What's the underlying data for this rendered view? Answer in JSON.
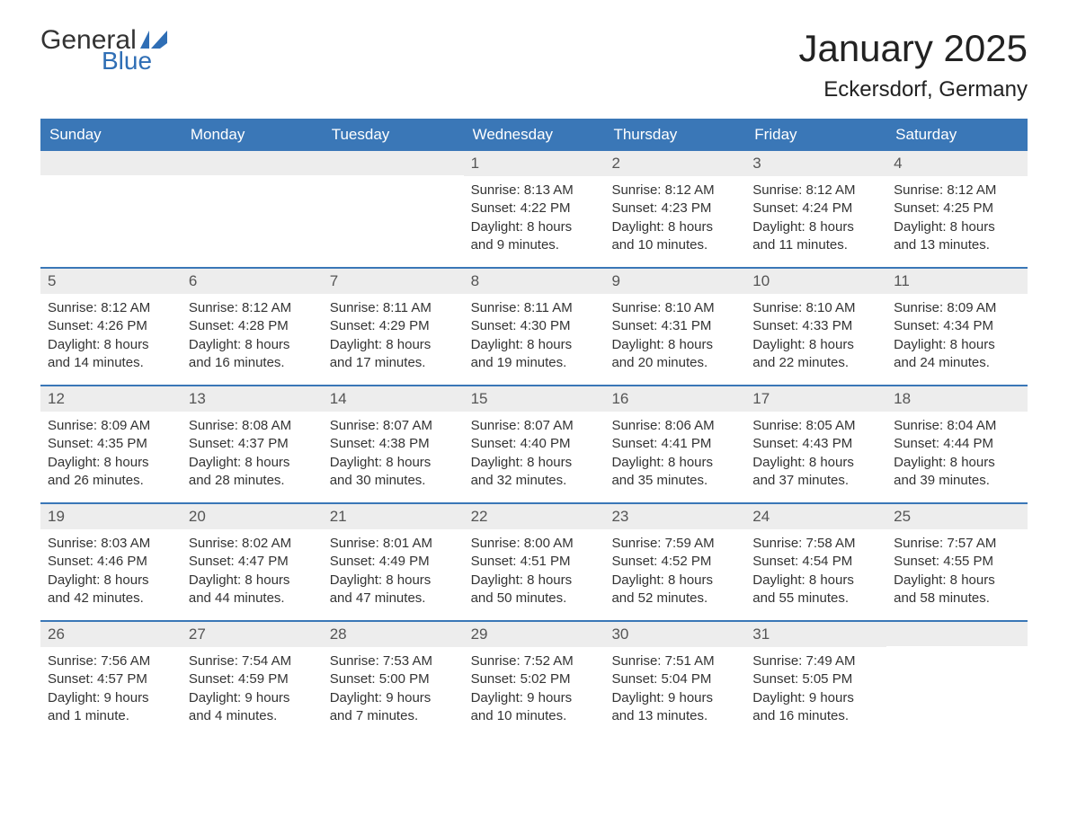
{
  "logo": {
    "text1": "General",
    "text2": "Blue",
    "flag_color": "#2f6eb5"
  },
  "title": "January 2025",
  "location": "Eckersdorf, Germany",
  "colors": {
    "header_bg": "#3a77b7",
    "header_text": "#ffffff",
    "daynum_bg": "#ededed",
    "border": "#3a77b7",
    "text": "#333333"
  },
  "weekdays": [
    "Sunday",
    "Monday",
    "Tuesday",
    "Wednesday",
    "Thursday",
    "Friday",
    "Saturday"
  ],
  "weeks": [
    [
      {
        "n": "",
        "sunrise": "",
        "sunset": "",
        "daylight": ""
      },
      {
        "n": "",
        "sunrise": "",
        "sunset": "",
        "daylight": ""
      },
      {
        "n": "",
        "sunrise": "",
        "sunset": "",
        "daylight": ""
      },
      {
        "n": "1",
        "sunrise": "Sunrise: 8:13 AM",
        "sunset": "Sunset: 4:22 PM",
        "daylight": "Daylight: 8 hours and 9 minutes."
      },
      {
        "n": "2",
        "sunrise": "Sunrise: 8:12 AM",
        "sunset": "Sunset: 4:23 PM",
        "daylight": "Daylight: 8 hours and 10 minutes."
      },
      {
        "n": "3",
        "sunrise": "Sunrise: 8:12 AM",
        "sunset": "Sunset: 4:24 PM",
        "daylight": "Daylight: 8 hours and 11 minutes."
      },
      {
        "n": "4",
        "sunrise": "Sunrise: 8:12 AM",
        "sunset": "Sunset: 4:25 PM",
        "daylight": "Daylight: 8 hours and 13 minutes."
      }
    ],
    [
      {
        "n": "5",
        "sunrise": "Sunrise: 8:12 AM",
        "sunset": "Sunset: 4:26 PM",
        "daylight": "Daylight: 8 hours and 14 minutes."
      },
      {
        "n": "6",
        "sunrise": "Sunrise: 8:12 AM",
        "sunset": "Sunset: 4:28 PM",
        "daylight": "Daylight: 8 hours and 16 minutes."
      },
      {
        "n": "7",
        "sunrise": "Sunrise: 8:11 AM",
        "sunset": "Sunset: 4:29 PM",
        "daylight": "Daylight: 8 hours and 17 minutes."
      },
      {
        "n": "8",
        "sunrise": "Sunrise: 8:11 AM",
        "sunset": "Sunset: 4:30 PM",
        "daylight": "Daylight: 8 hours and 19 minutes."
      },
      {
        "n": "9",
        "sunrise": "Sunrise: 8:10 AM",
        "sunset": "Sunset: 4:31 PM",
        "daylight": "Daylight: 8 hours and 20 minutes."
      },
      {
        "n": "10",
        "sunrise": "Sunrise: 8:10 AM",
        "sunset": "Sunset: 4:33 PM",
        "daylight": "Daylight: 8 hours and 22 minutes."
      },
      {
        "n": "11",
        "sunrise": "Sunrise: 8:09 AM",
        "sunset": "Sunset: 4:34 PM",
        "daylight": "Daylight: 8 hours and 24 minutes."
      }
    ],
    [
      {
        "n": "12",
        "sunrise": "Sunrise: 8:09 AM",
        "sunset": "Sunset: 4:35 PM",
        "daylight": "Daylight: 8 hours and 26 minutes."
      },
      {
        "n": "13",
        "sunrise": "Sunrise: 8:08 AM",
        "sunset": "Sunset: 4:37 PM",
        "daylight": "Daylight: 8 hours and 28 minutes."
      },
      {
        "n": "14",
        "sunrise": "Sunrise: 8:07 AM",
        "sunset": "Sunset: 4:38 PM",
        "daylight": "Daylight: 8 hours and 30 minutes."
      },
      {
        "n": "15",
        "sunrise": "Sunrise: 8:07 AM",
        "sunset": "Sunset: 4:40 PM",
        "daylight": "Daylight: 8 hours and 32 minutes."
      },
      {
        "n": "16",
        "sunrise": "Sunrise: 8:06 AM",
        "sunset": "Sunset: 4:41 PM",
        "daylight": "Daylight: 8 hours and 35 minutes."
      },
      {
        "n": "17",
        "sunrise": "Sunrise: 8:05 AM",
        "sunset": "Sunset: 4:43 PM",
        "daylight": "Daylight: 8 hours and 37 minutes."
      },
      {
        "n": "18",
        "sunrise": "Sunrise: 8:04 AM",
        "sunset": "Sunset: 4:44 PM",
        "daylight": "Daylight: 8 hours and 39 minutes."
      }
    ],
    [
      {
        "n": "19",
        "sunrise": "Sunrise: 8:03 AM",
        "sunset": "Sunset: 4:46 PM",
        "daylight": "Daylight: 8 hours and 42 minutes."
      },
      {
        "n": "20",
        "sunrise": "Sunrise: 8:02 AM",
        "sunset": "Sunset: 4:47 PM",
        "daylight": "Daylight: 8 hours and 44 minutes."
      },
      {
        "n": "21",
        "sunrise": "Sunrise: 8:01 AM",
        "sunset": "Sunset: 4:49 PM",
        "daylight": "Daylight: 8 hours and 47 minutes."
      },
      {
        "n": "22",
        "sunrise": "Sunrise: 8:00 AM",
        "sunset": "Sunset: 4:51 PM",
        "daylight": "Daylight: 8 hours and 50 minutes."
      },
      {
        "n": "23",
        "sunrise": "Sunrise: 7:59 AM",
        "sunset": "Sunset: 4:52 PM",
        "daylight": "Daylight: 8 hours and 52 minutes."
      },
      {
        "n": "24",
        "sunrise": "Sunrise: 7:58 AM",
        "sunset": "Sunset: 4:54 PM",
        "daylight": "Daylight: 8 hours and 55 minutes."
      },
      {
        "n": "25",
        "sunrise": "Sunrise: 7:57 AM",
        "sunset": "Sunset: 4:55 PM",
        "daylight": "Daylight: 8 hours and 58 minutes."
      }
    ],
    [
      {
        "n": "26",
        "sunrise": "Sunrise: 7:56 AM",
        "sunset": "Sunset: 4:57 PM",
        "daylight": "Daylight: 9 hours and 1 minute."
      },
      {
        "n": "27",
        "sunrise": "Sunrise: 7:54 AM",
        "sunset": "Sunset: 4:59 PM",
        "daylight": "Daylight: 9 hours and 4 minutes."
      },
      {
        "n": "28",
        "sunrise": "Sunrise: 7:53 AM",
        "sunset": "Sunset: 5:00 PM",
        "daylight": "Daylight: 9 hours and 7 minutes."
      },
      {
        "n": "29",
        "sunrise": "Sunrise: 7:52 AM",
        "sunset": "Sunset: 5:02 PM",
        "daylight": "Daylight: 9 hours and 10 minutes."
      },
      {
        "n": "30",
        "sunrise": "Sunrise: 7:51 AM",
        "sunset": "Sunset: 5:04 PM",
        "daylight": "Daylight: 9 hours and 13 minutes."
      },
      {
        "n": "31",
        "sunrise": "Sunrise: 7:49 AM",
        "sunset": "Sunset: 5:05 PM",
        "daylight": "Daylight: 9 hours and 16 minutes."
      },
      {
        "n": "",
        "sunrise": "",
        "sunset": "",
        "daylight": ""
      }
    ]
  ]
}
